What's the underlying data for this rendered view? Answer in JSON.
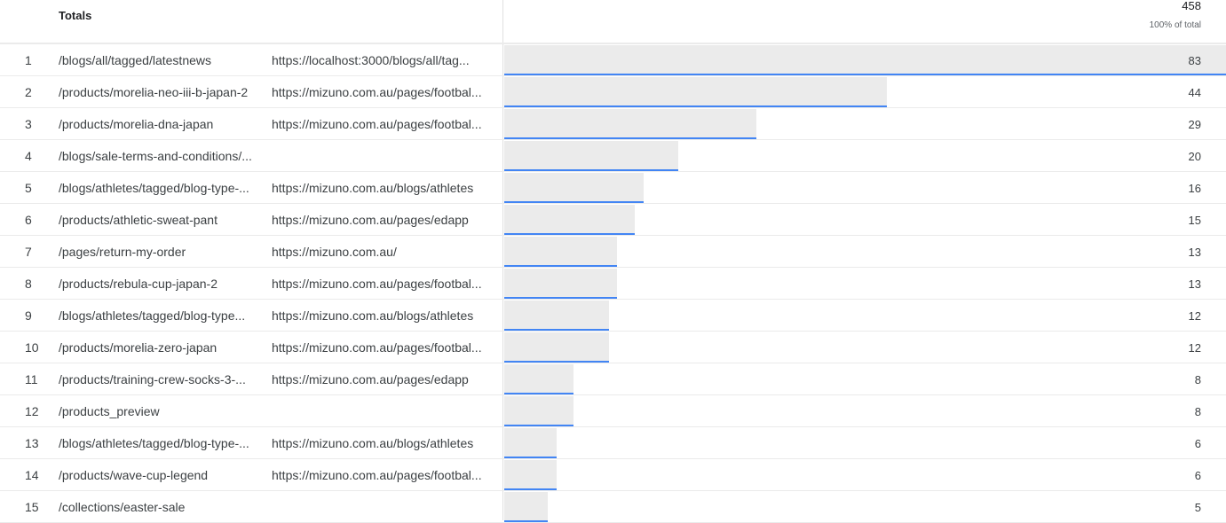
{
  "header": {
    "title": "Totals",
    "total": "458",
    "total_pct": "100% of total"
  },
  "accent": "#4285f4",
  "max_value": 83,
  "rows": [
    {
      "i": "1",
      "path": "/blogs/all/tagged/latestnews",
      "ref": "https://localhost:3000/blogs/all/tag...",
      "v": 83
    },
    {
      "i": "2",
      "path": "/products/morelia-neo-iii-b-japan-2",
      "ref": "https://mizuno.com.au/pages/footbal...",
      "v": 44
    },
    {
      "i": "3",
      "path": "/products/morelia-dna-japan",
      "ref": "https://mizuno.com.au/pages/footbal...",
      "v": 29
    },
    {
      "i": "4",
      "path": "/blogs/sale-terms-and-conditions/...",
      "ref": "",
      "v": 20
    },
    {
      "i": "5",
      "path": "/blogs/athletes/tagged/blog-type-...",
      "ref": "https://mizuno.com.au/blogs/athletes",
      "v": 16
    },
    {
      "i": "6",
      "path": "/products/athletic-sweat-pant",
      "ref": "https://mizuno.com.au/pages/edapp",
      "v": 15
    },
    {
      "i": "7",
      "path": "/pages/return-my-order",
      "ref": "https://mizuno.com.au/",
      "v": 13
    },
    {
      "i": "8",
      "path": "/products/rebula-cup-japan-2",
      "ref": "https://mizuno.com.au/pages/footbal...",
      "v": 13
    },
    {
      "i": "9",
      "path": "/blogs/athletes/tagged/blog-type...",
      "ref": "https://mizuno.com.au/blogs/athletes",
      "v": 12
    },
    {
      "i": "10",
      "path": "/products/morelia-zero-japan",
      "ref": "https://mizuno.com.au/pages/footbal...",
      "v": 12
    },
    {
      "i": "11",
      "path": "/products/training-crew-socks-3-...",
      "ref": "https://mizuno.com.au/pages/edapp",
      "v": 8
    },
    {
      "i": "12",
      "path": "/products_preview",
      "ref": "",
      "v": 8
    },
    {
      "i": "13",
      "path": "/blogs/athletes/tagged/blog-type-...",
      "ref": "https://mizuno.com.au/blogs/athletes",
      "v": 6
    },
    {
      "i": "14",
      "path": "/products/wave-cup-legend",
      "ref": "https://mizuno.com.au/pages/footbal...",
      "v": 6
    },
    {
      "i": "15",
      "path": "/collections/easter-sale",
      "ref": "",
      "v": 5
    }
  ]
}
